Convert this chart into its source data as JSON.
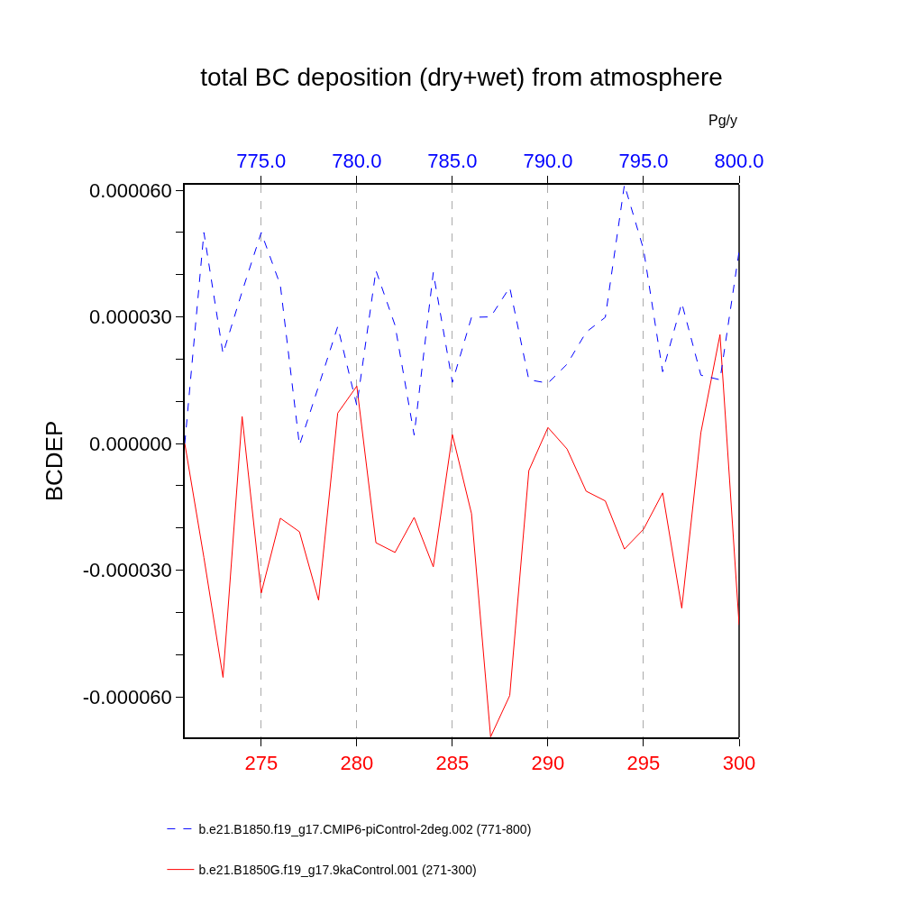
{
  "chart_data": {
    "type": "line",
    "title": "total BC deposition (dry+wet) from atmosphere",
    "ylabel": "BCDEP",
    "annotations": [
      "Pg/y"
    ],
    "series": [
      {
        "name": "b.e21.B1850.f19_g17.CMIP6-piControl-2deg.002 (771-800)",
        "color": "#0000ff",
        "line_style": "dashed",
        "axis": "x2",
        "x": [
          771,
          772,
          773,
          774,
          775,
          776,
          777,
          778,
          779,
          780,
          781,
          782,
          783,
          784,
          785,
          786,
          787,
          788,
          789,
          790,
          791,
          792,
          793,
          794,
          795,
          796,
          797,
          798,
          799,
          800
        ],
        "values": [
          0,
          5e-05,
          2.13e-05,
          3.6e-05,
          5e-05,
          3.75e-05,
          -4e-07,
          1.36e-05,
          2.77e-05,
          9e-06,
          4.1e-05,
          2.8e-05,
          2e-06,
          4.05e-05,
          1.45e-05,
          2.99e-05,
          3e-05,
          3.7e-05,
          1.51e-05,
          1.43e-05,
          1.88e-05,
          2.64e-05,
          2.99e-05,
          6.13e-05,
          4.6e-05,
          1.7e-05,
          3.33e-05,
          1.62e-05,
          1.51e-05,
          4.56e-05
        ]
      },
      {
        "name": "b.e21.B1850G.f19_g17.9kaControl.001 (271-300)",
        "color": "#ff0000",
        "line_style": "solid",
        "x": [
          271,
          272,
          273,
          274,
          275,
          276,
          277,
          278,
          279,
          280,
          281,
          282,
          283,
          284,
          285,
          286,
          287,
          288,
          289,
          290,
          291,
          292,
          293,
          294,
          295,
          296,
          297,
          298,
          299,
          300
        ],
        "values": [
          0,
          -2.7e-05,
          -5.54e-05,
          6.4e-06,
          -3.54e-05,
          -1.77e-05,
          -2.09e-05,
          -3.71e-05,
          7.2e-06,
          1.36e-05,
          -2.35e-05,
          -2.58e-05,
          -1.75e-05,
          -2.92e-05,
          2.1e-06,
          -1.66e-05,
          -6.95e-05,
          -5.97e-05,
          -6.4e-06,
          3.8e-06,
          -1.3e-06,
          -1.13e-05,
          -1.36e-05,
          -2.5e-05,
          -2.03e-05,
          -1.17e-05,
          -3.9e-05,
          2.6e-06,
          2.58e-05,
          -4.3e-05
        ]
      }
    ],
    "xlim": [
      271,
      300
    ],
    "xticks": [
      275,
      280,
      285,
      290,
      295,
      300
    ],
    "x2lim": [
      771,
      800
    ],
    "x2ticks": [
      {
        "value": 775,
        "label": "775.0"
      },
      {
        "value": 780,
        "label": "780.0"
      },
      {
        "value": 785,
        "label": "785.0"
      },
      {
        "value": 790,
        "label": "790.0"
      },
      {
        "value": 795,
        "label": "795.0"
      },
      {
        "value": 800,
        "label": "800.0"
      }
    ],
    "ylim": [
      -6.96e-05,
      6.13e-05
    ],
    "yticks": [
      {
        "value": -6e-05,
        "label": "-0.000060"
      },
      {
        "value": -5e-05,
        "label": null
      },
      {
        "value": -4e-05,
        "label": null
      },
      {
        "value": -3e-05,
        "label": "-0.000030"
      },
      {
        "value": -2e-05,
        "label": null
      },
      {
        "value": -1e-05,
        "label": null
      },
      {
        "value": 0,
        "label": "0.000000"
      },
      {
        "value": 1e-05,
        "label": null
      },
      {
        "value": 2e-05,
        "label": null
      },
      {
        "value": 3e-05,
        "label": "0.000030"
      },
      {
        "value": 4e-05,
        "label": null
      },
      {
        "value": 5e-05,
        "label": null
      },
      {
        "value": 6e-05,
        "label": "0.000060"
      }
    ],
    "grid": "x",
    "legend": "bottom"
  }
}
